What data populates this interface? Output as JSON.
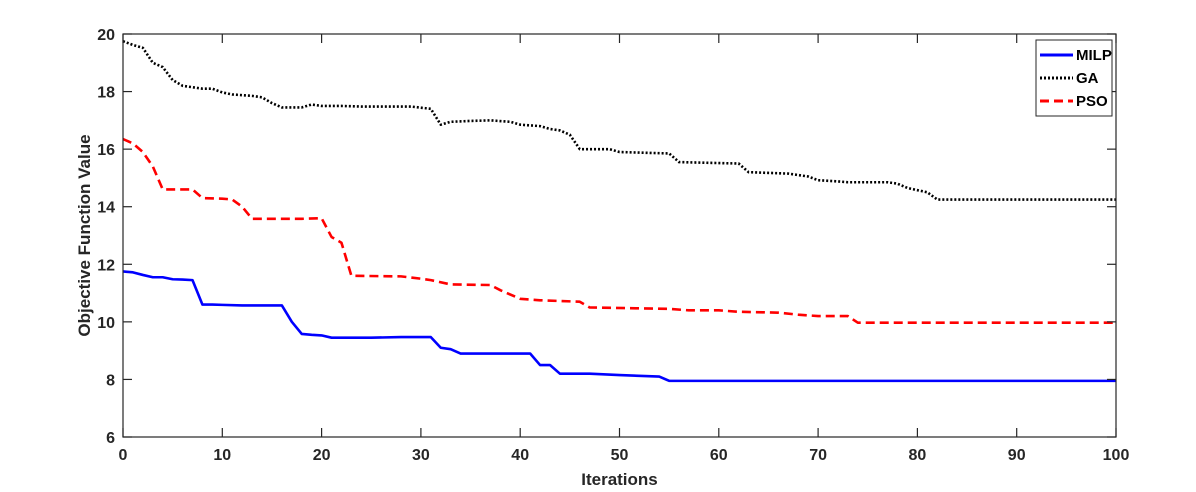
{
  "chart_data": {
    "type": "line",
    "title": "",
    "xlabel": "Iterations",
    "ylabel": "Objective Function Value",
    "xlim": [
      0,
      100
    ],
    "ylim": [
      6,
      20
    ],
    "xticks": [
      0,
      10,
      20,
      30,
      40,
      50,
      60,
      70,
      80,
      90,
      100
    ],
    "yticks": [
      6,
      8,
      10,
      12,
      14,
      16,
      18,
      20
    ],
    "grid": false,
    "legend_position": "top-right",
    "series": [
      {
        "name": "MILP",
        "color": "#0000ff",
        "style": "solid",
        "points": [
          [
            0,
            11.75
          ],
          [
            1,
            11.72
          ],
          [
            2,
            11.63
          ],
          [
            3,
            11.55
          ],
          [
            4,
            11.55
          ],
          [
            5,
            11.48
          ],
          [
            6,
            11.47
          ],
          [
            7,
            11.45
          ],
          [
            8,
            10.6
          ],
          [
            9,
            10.6
          ],
          [
            10,
            10.59
          ],
          [
            12,
            10.57
          ],
          [
            14,
            10.57
          ],
          [
            16,
            10.57
          ],
          [
            17,
            10.0
          ],
          [
            18,
            9.58
          ],
          [
            19,
            9.55
          ],
          [
            20,
            9.53
          ],
          [
            21,
            9.45
          ],
          [
            25,
            9.45
          ],
          [
            28,
            9.47
          ],
          [
            31,
            9.47
          ],
          [
            32,
            9.1
          ],
          [
            33,
            9.05
          ],
          [
            34,
            8.9
          ],
          [
            41,
            8.9
          ],
          [
            42,
            8.5
          ],
          [
            43,
            8.5
          ],
          [
            44,
            8.2
          ],
          [
            47,
            8.2
          ],
          [
            50,
            8.15
          ],
          [
            54,
            8.1
          ],
          [
            55,
            7.95
          ],
          [
            100,
            7.95
          ]
        ]
      },
      {
        "name": "GA",
        "color": "#000000",
        "style": "dotted",
        "points": [
          [
            0,
            19.75
          ],
          [
            1,
            19.62
          ],
          [
            2,
            19.52
          ],
          [
            3,
            19.0
          ],
          [
            4,
            18.85
          ],
          [
            5,
            18.4
          ],
          [
            6,
            18.2
          ],
          [
            7,
            18.15
          ],
          [
            8,
            18.1
          ],
          [
            9,
            18.1
          ],
          [
            10,
            17.97
          ],
          [
            11,
            17.9
          ],
          [
            13,
            17.85
          ],
          [
            14,
            17.8
          ],
          [
            15,
            17.6
          ],
          [
            16,
            17.45
          ],
          [
            18,
            17.45
          ],
          [
            19,
            17.55
          ],
          [
            20,
            17.5
          ],
          [
            22,
            17.5
          ],
          [
            24,
            17.48
          ],
          [
            29,
            17.48
          ],
          [
            31,
            17.4
          ],
          [
            32,
            16.85
          ],
          [
            33,
            16.95
          ],
          [
            35,
            16.98
          ],
          [
            37,
            17.0
          ],
          [
            39,
            16.95
          ],
          [
            40,
            16.85
          ],
          [
            42,
            16.8
          ],
          [
            43,
            16.7
          ],
          [
            44,
            16.65
          ],
          [
            45,
            16.5
          ],
          [
            46,
            16.0
          ],
          [
            49,
            16.0
          ],
          [
            50,
            15.9
          ],
          [
            55,
            15.85
          ],
          [
            56,
            15.55
          ],
          [
            62,
            15.5
          ],
          [
            63,
            15.2
          ],
          [
            67,
            15.15
          ],
          [
            69,
            15.05
          ],
          [
            70,
            14.92
          ],
          [
            72,
            14.88
          ],
          [
            73,
            14.85
          ],
          [
            77,
            14.85
          ],
          [
            78,
            14.8
          ],
          [
            79,
            14.65
          ],
          [
            81,
            14.5
          ],
          [
            82,
            14.25
          ],
          [
            100,
            14.25
          ]
        ]
      },
      {
        "name": "PSO",
        "color": "#ff0000",
        "style": "dashed",
        "points": [
          [
            0,
            16.35
          ],
          [
            1,
            16.2
          ],
          [
            2,
            15.9
          ],
          [
            3,
            15.4
          ],
          [
            4,
            14.6
          ],
          [
            7,
            14.6
          ],
          [
            8,
            14.3
          ],
          [
            10,
            14.28
          ],
          [
            11,
            14.25
          ],
          [
            12,
            14.0
          ],
          [
            13,
            13.58
          ],
          [
            18,
            13.58
          ],
          [
            20,
            13.6
          ],
          [
            21,
            12.95
          ],
          [
            22,
            12.75
          ],
          [
            23,
            11.6
          ],
          [
            28,
            11.58
          ],
          [
            30,
            11.5
          ],
          [
            31,
            11.45
          ],
          [
            33,
            11.3
          ],
          [
            37,
            11.28
          ],
          [
            38,
            11.1
          ],
          [
            40,
            10.8
          ],
          [
            42,
            10.75
          ],
          [
            46,
            10.7
          ],
          [
            47,
            10.5
          ],
          [
            55,
            10.45
          ],
          [
            57,
            10.4
          ],
          [
            60,
            10.4
          ],
          [
            62,
            10.35
          ],
          [
            66,
            10.32
          ],
          [
            68,
            10.25
          ],
          [
            70,
            10.2
          ],
          [
            73,
            10.2
          ],
          [
            74,
            9.97
          ],
          [
            100,
            9.97
          ]
        ]
      }
    ]
  }
}
